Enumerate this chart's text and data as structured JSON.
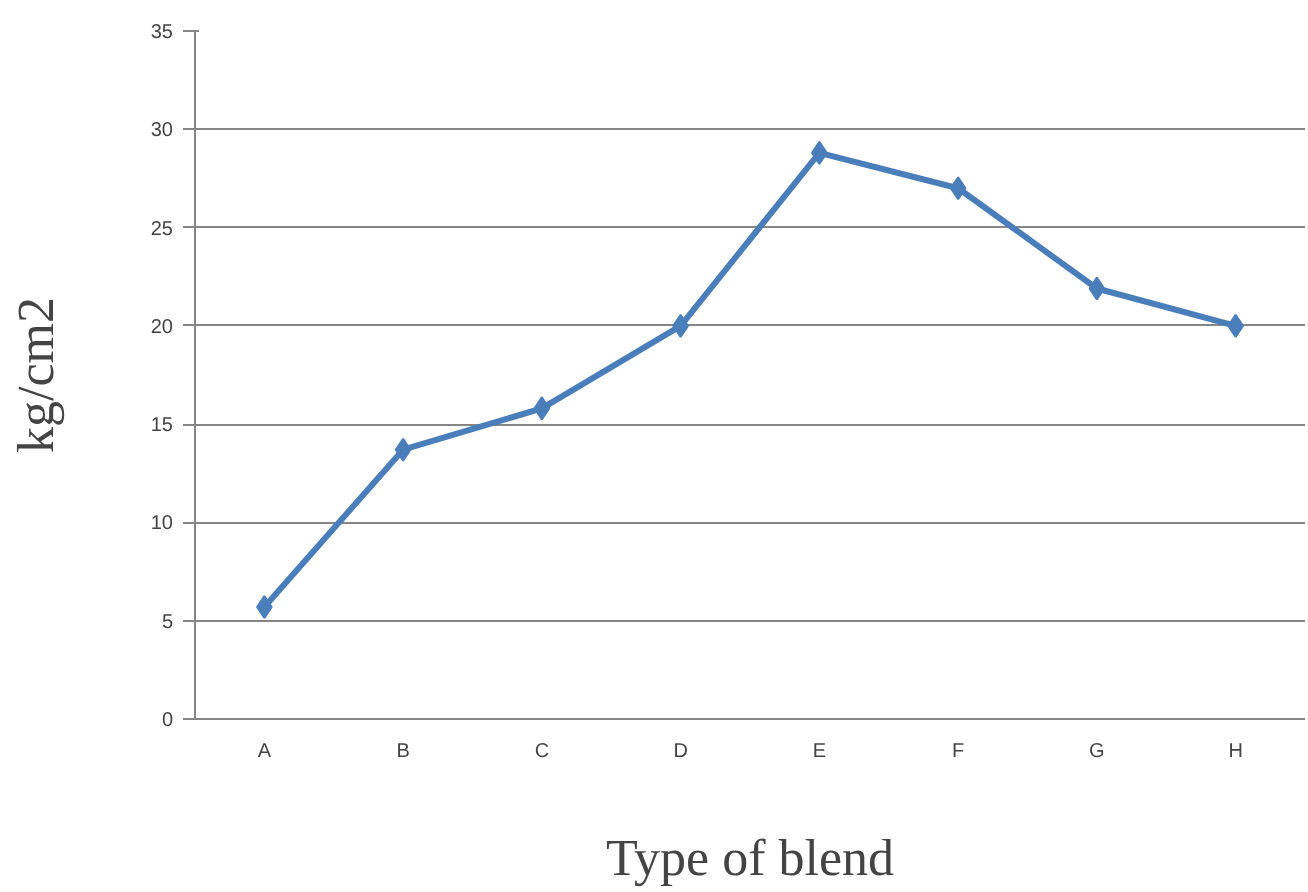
{
  "chart_data": {
    "type": "line",
    "xlabel": "Type of blend",
    "ylabel": "kg/cm2",
    "categories": [
      "A",
      "B",
      "C",
      "D",
      "E",
      "F",
      "G",
      "H"
    ],
    "series": [
      {
        "color": "#4a7ebb",
        "values": [
          5.7,
          13.7,
          15.8,
          20.0,
          28.8,
          27.0,
          21.9,
          20.0
        ]
      }
    ],
    "ylim": [
      0,
      35
    ],
    "yticks": [
      0,
      5,
      10,
      15,
      20,
      25,
      30,
      35
    ],
    "grid": "y",
    "marker": "diamond",
    "line_style": "solid"
  }
}
